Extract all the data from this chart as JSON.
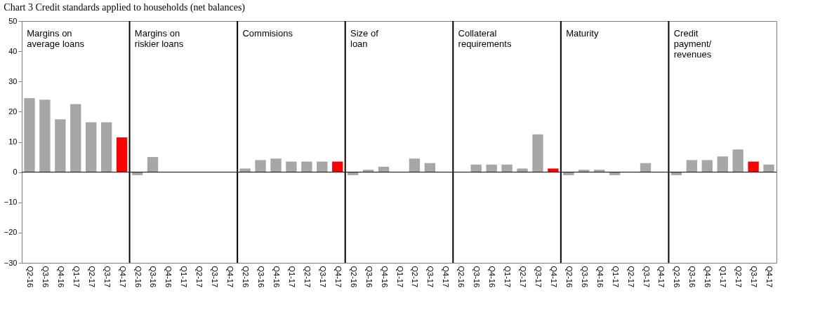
{
  "chart_data": {
    "type": "bar",
    "title": "Chart 3 Credit standards applied to households (net balances)",
    "categories": [
      "Q2-16",
      "Q3-16",
      "Q4-16",
      "Q1-17",
      "Q2-17",
      "Q3-17",
      "Q4-17",
      "Q2-16",
      "Q3-16",
      "Q4-16",
      "Q1-17",
      "Q2-17",
      "Q3-17",
      "Q4-17",
      "Q2-16",
      "Q3-16",
      "Q4-16",
      "Q1-17",
      "Q2-17",
      "Q3-17",
      "Q4-17",
      "Q2-16",
      "Q3-16",
      "Q4-16",
      "Q1-17",
      "Q2-17",
      "Q3-17",
      "Q4-17",
      "Q2-16",
      "Q3-16",
      "Q4-16",
      "Q1-17",
      "Q2-17",
      "Q3-17",
      "Q4-17",
      "Q2-16",
      "Q3-16",
      "Q4-16",
      "Q1-17",
      "Q2-17",
      "Q3-17",
      "Q4-17",
      "Q2-16",
      "Q3-16",
      "Q4-16",
      "Q1-17",
      "Q2-17",
      "Q3-17",
      "Q4-17"
    ],
    "values": [
      24.5,
      24,
      17.5,
      22.5,
      16.5,
      16.5,
      11.5,
      -1,
      5,
      null,
      null,
      null,
      null,
      null,
      1.2,
      4,
      4.5,
      3.5,
      3.5,
      3.5,
      3.5,
      -1,
      0.8,
      1.8,
      null,
      4.5,
      3,
      null,
      null,
      2.5,
      2.5,
      2.5,
      1.2,
      12.5,
      1.2,
      -1,
      0.8,
      0.8,
      -1,
      null,
      3,
      null,
      -1,
      4,
      4,
      5.2,
      7.5,
      3.5,
      2.5
    ],
    "colors": [
      "#a6a6a6",
      "#a6a6a6",
      "#a6a6a6",
      "#a6a6a6",
      "#a6a6a6",
      "#a6a6a6",
      "#ff0000",
      "#a6a6a6",
      "#a6a6a6",
      "#a6a6a6",
      "#a6a6a6",
      "#a6a6a6",
      "#a6a6a6",
      "#a6a6a6",
      "#a6a6a6",
      "#a6a6a6",
      "#a6a6a6",
      "#a6a6a6",
      "#a6a6a6",
      "#a6a6a6",
      "#ff0000",
      "#a6a6a6",
      "#a6a6a6",
      "#a6a6a6",
      "#a6a6a6",
      "#a6a6a6",
      "#a6a6a6",
      "#a6a6a6",
      "#a6a6a6",
      "#a6a6a6",
      "#a6a6a6",
      "#a6a6a6",
      "#a6a6a6",
      "#a6a6a6",
      "#ff0000",
      "#a6a6a6",
      "#a6a6a6",
      "#a6a6a6",
      "#a6a6a6",
      "#a6a6a6",
      "#a6a6a6",
      "#a6a6a6",
      "#a6a6a6",
      "#a6a6a6",
      "#a6a6a6",
      "#a6a6a6",
      "#a6a6a6",
      "#ff0000",
      "#a6a6a6"
    ],
    "ylim": [
      -30,
      50
    ],
    "yticks": [
      -30,
      -20,
      -10,
      0,
      10,
      20,
      30,
      40,
      50
    ],
    "annotations": [
      "Margins on\naverage loans",
      "Margins on\nriskier loans",
      "Commisions",
      "Size of\nloan",
      "Collateral\nrequirements",
      "Maturity",
      "Credit\npayment/\nrevenues"
    ]
  }
}
